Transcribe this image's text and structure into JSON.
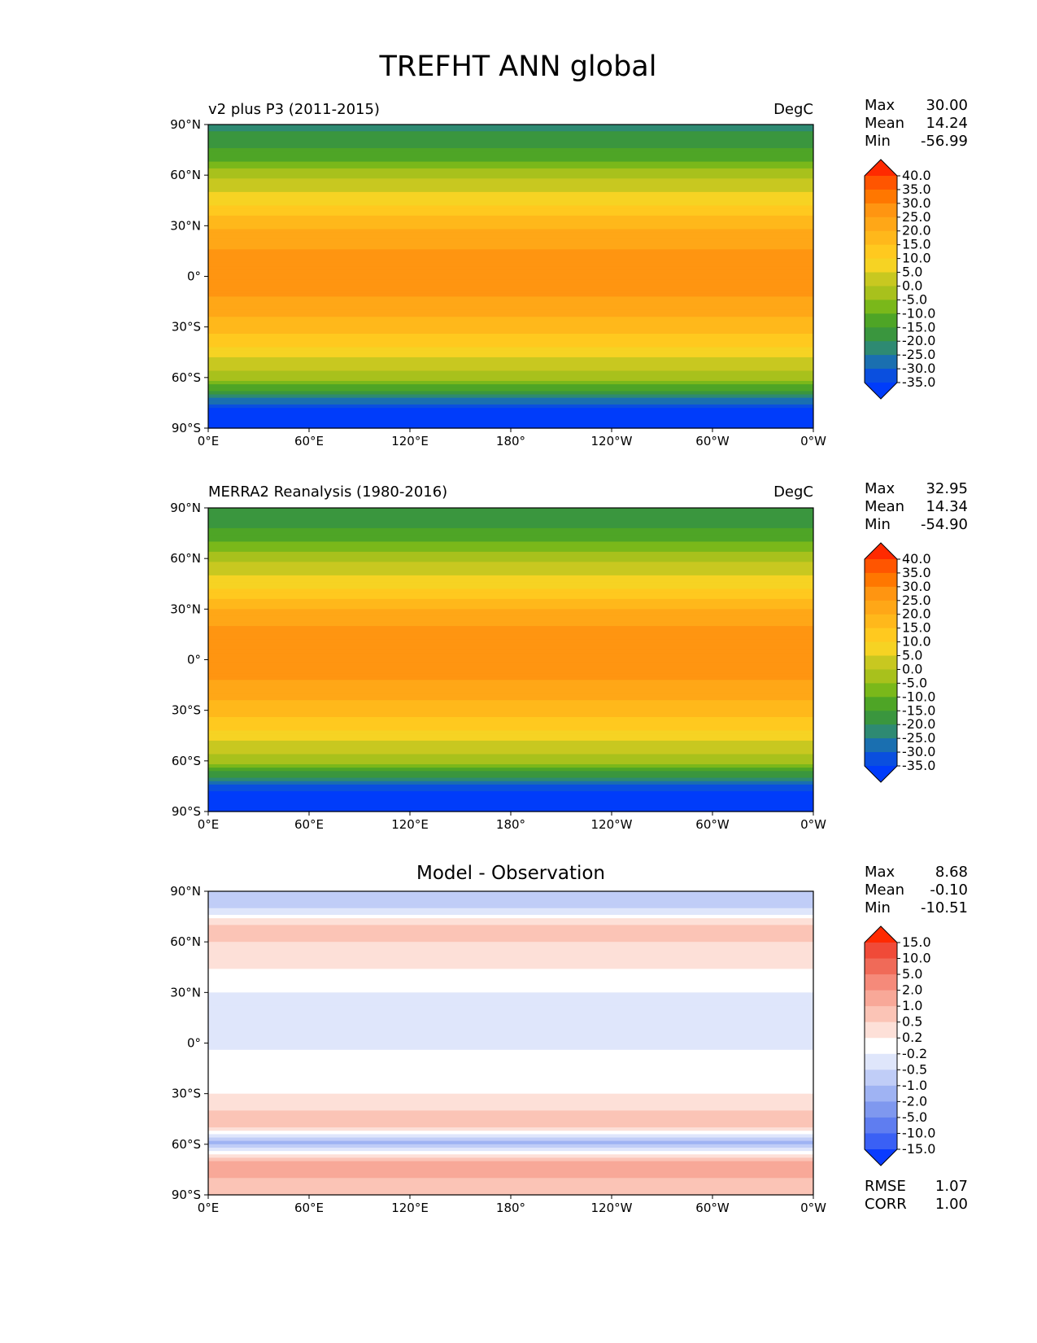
{
  "figure": {
    "title": "TREFHT ANN global"
  },
  "panels": [
    {
      "left_title": "v2 plus P3 (2011-2015)",
      "center_title": "",
      "right_title": "DegC",
      "stats": [
        {
          "label": "Max",
          "value": "30.00"
        },
        {
          "label": "Mean",
          "value": "14.24"
        },
        {
          "label": "Min",
          "value": "-56.99"
        }
      ],
      "footer_stats": []
    },
    {
      "left_title": "MERRA2 Reanalysis (1980-2016)",
      "center_title": "",
      "right_title": "DegC",
      "stats": [
        {
          "label": "Max",
          "value": "32.95"
        },
        {
          "label": "Mean",
          "value": "14.34"
        },
        {
          "label": "Min",
          "value": "-54.90"
        }
      ],
      "footer_stats": []
    },
    {
      "left_title": "",
      "center_title": "Model - Observation",
      "right_title": "",
      "stats": [
        {
          "label": "Max",
          "value": "8.68"
        },
        {
          "label": "Mean",
          "value": "-0.10"
        },
        {
          "label": "Min",
          "value": "-10.51"
        }
      ],
      "footer_stats": [
        {
          "label": "RMSE",
          "value": "1.07"
        },
        {
          "label": "CORR",
          "value": "1.00"
        }
      ]
    }
  ],
  "chart_data": [
    {
      "type": "heatmap",
      "title": "v2 plus P3 (2011-2015)",
      "units": "DegC",
      "x_ticks": [
        "0°E",
        "60°E",
        "120°E",
        "180°",
        "120°W",
        "60°W",
        "0°W"
      ],
      "y_ticks": [
        "90°N",
        "60°N",
        "30°N",
        "0°",
        "30°S",
        "60°S",
        "90°S"
      ],
      "xlim": [
        0,
        360
      ],
      "ylim": [
        -90,
        90
      ],
      "colorbar": {
        "levels": [
          "40.0",
          "35.0",
          "30.0",
          "25.0",
          "20.0",
          "15.0",
          "10.0",
          "5.0",
          "0.0",
          "-5.0",
          "-10.0",
          "-15.0",
          "-20.0",
          "-25.0",
          "-30.0",
          "-35.0"
        ],
        "colors": [
          "#ff2a00",
          "#ff5500",
          "#ff7700",
          "#ff9511",
          "#ffa717",
          "#ffb81b",
          "#ffc91f",
          "#f6d323",
          "#c8c820",
          "#a8c11c",
          "#7ab81a",
          "#4ea526",
          "#3a963e",
          "#2e8a72",
          "#1a6fb0",
          "#0a4fdf",
          "#003cfa"
        ]
      },
      "zonal_profile": [
        {
          "lat": 90,
          "value": -22
        },
        {
          "lat": 80,
          "value": -17
        },
        {
          "lat": 70,
          "value": -12
        },
        {
          "lat": 60,
          "value": -2
        },
        {
          "lat": 50,
          "value": 5
        },
        {
          "lat": 40,
          "value": 12
        },
        {
          "lat": 30,
          "value": 19
        },
        {
          "lat": 20,
          "value": 24
        },
        {
          "lat": 10,
          "value": 27
        },
        {
          "lat": 0,
          "value": 27
        },
        {
          "lat": -10,
          "value": 26
        },
        {
          "lat": -20,
          "value": 22
        },
        {
          "lat": -30,
          "value": 17
        },
        {
          "lat": -40,
          "value": 11
        },
        {
          "lat": -50,
          "value": 4
        },
        {
          "lat": -60,
          "value": -2
        },
        {
          "lat": -70,
          "value": -20
        },
        {
          "lat": -80,
          "value": -40
        },
        {
          "lat": -90,
          "value": -50
        }
      ]
    },
    {
      "type": "heatmap",
      "title": "MERRA2 Reanalysis (1980-2016)",
      "units": "DegC",
      "x_ticks": [
        "0°E",
        "60°E",
        "120°E",
        "180°",
        "120°W",
        "60°W",
        "0°W"
      ],
      "y_ticks": [
        "90°N",
        "60°N",
        "30°N",
        "0°",
        "30°S",
        "60°S",
        "90°S"
      ],
      "xlim": [
        0,
        360
      ],
      "ylim": [
        -90,
        90
      ],
      "colorbar": {
        "levels": [
          "40.0",
          "35.0",
          "30.0",
          "25.0",
          "20.0",
          "15.0",
          "10.0",
          "5.0",
          "0.0",
          "-5.0",
          "-10.0",
          "-15.0",
          "-20.0",
          "-25.0",
          "-30.0",
          "-35.0"
        ],
        "colors": [
          "#ff2a00",
          "#ff5500",
          "#ff7700",
          "#ff9511",
          "#ffa717",
          "#ffb81b",
          "#ffc91f",
          "#f6d323",
          "#c8c820",
          "#a8c11c",
          "#7ab81a",
          "#4ea526",
          "#3a963e",
          "#2e8a72",
          "#1a6fb0",
          "#0a4fdf",
          "#003cfa"
        ]
      },
      "zonal_profile": [
        {
          "lat": 90,
          "value": -20
        },
        {
          "lat": 80,
          "value": -16
        },
        {
          "lat": 70,
          "value": -11
        },
        {
          "lat": 60,
          "value": -1
        },
        {
          "lat": 50,
          "value": 5
        },
        {
          "lat": 40,
          "value": 12
        },
        {
          "lat": 30,
          "value": 20
        },
        {
          "lat": 20,
          "value": 25
        },
        {
          "lat": 10,
          "value": 27
        },
        {
          "lat": 0,
          "value": 27
        },
        {
          "lat": -10,
          "value": 26
        },
        {
          "lat": -20,
          "value": 22
        },
        {
          "lat": -30,
          "value": 17
        },
        {
          "lat": -40,
          "value": 11
        },
        {
          "lat": -50,
          "value": 4
        },
        {
          "lat": -60,
          "value": -2
        },
        {
          "lat": -70,
          "value": -22
        },
        {
          "lat": -80,
          "value": -40
        },
        {
          "lat": -90,
          "value": -50
        }
      ]
    },
    {
      "type": "heatmap",
      "title": "Model - Observation",
      "units": "",
      "x_ticks": [
        "0°E",
        "60°E",
        "120°E",
        "180°",
        "120°W",
        "60°W",
        "0°W"
      ],
      "y_ticks": [
        "90°N",
        "60°N",
        "30°N",
        "0°",
        "30°S",
        "60°S",
        "90°S"
      ],
      "xlim": [
        0,
        360
      ],
      "ylim": [
        -90,
        90
      ],
      "colorbar": {
        "levels": [
          "15.0",
          "10.0",
          "5.0",
          "2.0",
          "1.0",
          "0.5",
          "0.2",
          "-0.2",
          "-0.5",
          "-1.0",
          "-2.0",
          "-5.0",
          "-10.0",
          "-15.0"
        ],
        "colors": [
          "#ff2a00",
          "#f04a38",
          "#f06a58",
          "#f58a7a",
          "#f8a898",
          "#fbc4b6",
          "#fde0d8",
          "#ffffff",
          "#dfe6fb",
          "#c0cdf7",
          "#9fb3f3",
          "#7f98ef",
          "#5f7df0",
          "#3a60f5",
          "#0a3cff"
        ]
      },
      "zonal_profile": [
        {
          "lat": 90,
          "value": -0.8
        },
        {
          "lat": 80,
          "value": -0.6
        },
        {
          "lat": 70,
          "value": 0.6
        },
        {
          "lat": 60,
          "value": 0.5
        },
        {
          "lat": 50,
          "value": 0.4
        },
        {
          "lat": 40,
          "value": 0.1
        },
        {
          "lat": 30,
          "value": -0.2
        },
        {
          "lat": 20,
          "value": -0.4
        },
        {
          "lat": 10,
          "value": -0.4
        },
        {
          "lat": 0,
          "value": -0.3
        },
        {
          "lat": -10,
          "value": -0.1
        },
        {
          "lat": -20,
          "value": 0.0
        },
        {
          "lat": -30,
          "value": 0.2
        },
        {
          "lat": -40,
          "value": 0.5
        },
        {
          "lat": -50,
          "value": 0.6
        },
        {
          "lat": -60,
          "value": -1.2
        },
        {
          "lat": -70,
          "value": 1.2
        },
        {
          "lat": -80,
          "value": 1.0
        },
        {
          "lat": -90,
          "value": 0.8
        }
      ]
    }
  ]
}
